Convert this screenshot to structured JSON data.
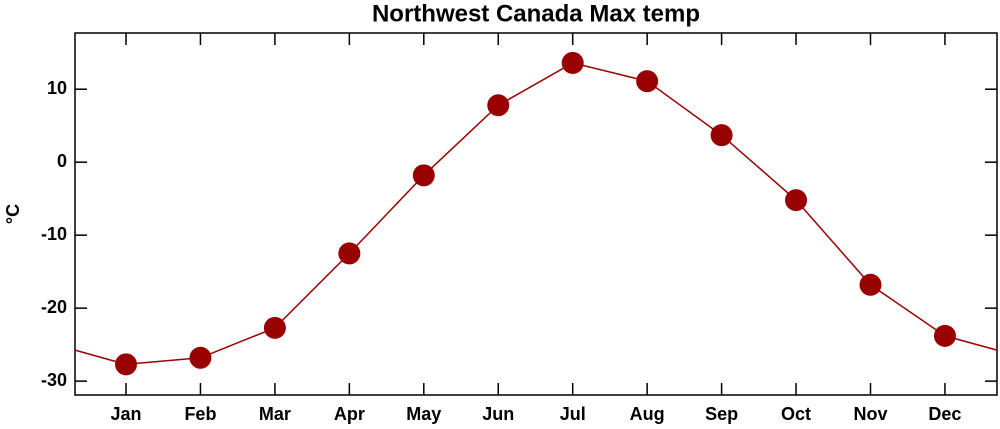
{
  "chart_data": {
    "type": "line",
    "title": "Northwest Canada Max temp",
    "y_label": "°C",
    "categories": [
      "Jan",
      "Feb",
      "Mar",
      "Apr",
      "May",
      "Jun",
      "Jul",
      "Aug",
      "Sep",
      "Oct",
      "Nov",
      "Dec"
    ],
    "series": [
      {
        "name": "Max temp",
        "color": "#990000",
        "values": [
          -27.7,
          -26.8,
          -22.7,
          -12.5,
          -1.8,
          7.8,
          13.6,
          11.1,
          3.7,
          -5.2,
          -16.8,
          -23.8
        ]
      }
    ],
    "ylim": [
      -31.9,
      17.7
    ],
    "yticks": [
      -30,
      -20,
      -10,
      0,
      10
    ],
    "grid": false
  }
}
